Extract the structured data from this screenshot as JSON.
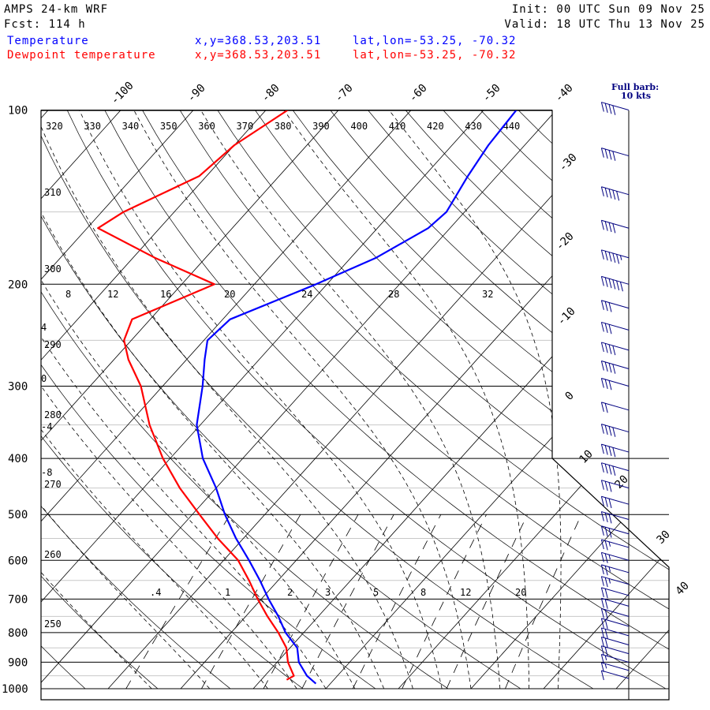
{
  "header": {
    "model": "AMPS 24-km WRF",
    "forecast": "Fcst: 114 h",
    "init": "Init: 00 UTC Sun 09 Nov 25",
    "valid": "Valid: 18 UTC Thu 13 Nov 25"
  },
  "legend": [
    {
      "name": "Temperature",
      "color": "#0000ff",
      "coords": "x,y=368.53,203.51",
      "latlon": "lat,lon=-53.25, -70.32"
    },
    {
      "name": "Dewpoint temperature",
      "color": "#ff0000",
      "coords": "x,y=368.53,203.51",
      "latlon": "lat,lon=-53.25, -70.32"
    }
  ],
  "barb_legend": {
    "line1": "Full barb:",
    "line2": "10 kts"
  },
  "chart_data": {
    "type": "line",
    "title": "",
    "xlabel": "",
    "ylabel": "",
    "y_scale": "log",
    "ylim": [
      1000,
      100
    ],
    "pressure_levels": [
      100,
      200,
      300,
      400,
      500,
      600,
      700,
      800,
      900,
      1000
    ],
    "isotherm_labels": [
      -100,
      -90,
      -80,
      -70,
      -60,
      -50,
      -40,
      -30,
      -20,
      -10,
      0,
      10,
      20,
      30,
      40
    ],
    "theta_labels_top": [
      320,
      330,
      340,
      350,
      360,
      370,
      380,
      390,
      400,
      410,
      420,
      430,
      440
    ],
    "theta_labels_left": [
      310,
      300,
      290,
      280,
      270,
      260,
      250
    ],
    "theta_e_labels": [
      8,
      12,
      16,
      20,
      24,
      28,
      32
    ],
    "theta_e_left_labels": [
      4,
      0,
      -4,
      -8
    ],
    "mixing_ratio_labels": [
      ".4",
      "1",
      "2",
      "3",
      "5",
      "8",
      "12",
      "20"
    ],
    "series": [
      {
        "name": "Temperature",
        "color": "#0000ff",
        "points": [
          {
            "p": 980,
            "t": -2.0
          },
          {
            "p": 950,
            "t": -4.2
          },
          {
            "p": 900,
            "t": -7.0
          },
          {
            "p": 850,
            "t": -9.0
          },
          {
            "p": 800,
            "t": -12.5
          },
          {
            "p": 750,
            "t": -15.5
          },
          {
            "p": 700,
            "t": -19.0
          },
          {
            "p": 650,
            "t": -22.5
          },
          {
            "p": 600,
            "t": -26.5
          },
          {
            "p": 550,
            "t": -31.0
          },
          {
            "p": 500,
            "t": -35.5
          },
          {
            "p": 450,
            "t": -40.0
          },
          {
            "p": 400,
            "t": -45.5
          },
          {
            "p": 350,
            "t": -50.5
          },
          {
            "p": 300,
            "t": -54.5
          },
          {
            "p": 270,
            "t": -57.5
          },
          {
            "p": 250,
            "t": -59.5
          },
          {
            "p": 230,
            "t": -59.0
          },
          {
            "p": 200,
            "t": -51.5
          },
          {
            "p": 180,
            "t": -46.5
          },
          {
            "p": 160,
            "t": -43.0
          },
          {
            "p": 150,
            "t": -42.5
          },
          {
            "p": 130,
            "t": -44.0
          },
          {
            "p": 115,
            "t": -45.0
          },
          {
            "p": 100,
            "t": -45.5
          }
        ]
      },
      {
        "name": "Dewpoint temperature",
        "color": "#ff0000",
        "points": [
          {
            "p": 965,
            "t": -6.5
          },
          {
            "p": 950,
            "t": -6.0
          },
          {
            "p": 900,
            "t": -8.5
          },
          {
            "p": 850,
            "t": -10.5
          },
          {
            "p": 800,
            "t": -13.5
          },
          {
            "p": 750,
            "t": -17.0
          },
          {
            "p": 700,
            "t": -20.5
          },
          {
            "p": 650,
            "t": -24.0
          },
          {
            "p": 600,
            "t": -28.0
          },
          {
            "p": 550,
            "t": -33.5
          },
          {
            "p": 500,
            "t": -39.0
          },
          {
            "p": 450,
            "t": -45.0
          },
          {
            "p": 400,
            "t": -51.0
          },
          {
            "p": 350,
            "t": -57.0
          },
          {
            "p": 300,
            "t": -63.0
          },
          {
            "p": 270,
            "t": -68.0
          },
          {
            "p": 250,
            "t": -71.0
          },
          {
            "p": 230,
            "t": -72.5
          },
          {
            "p": 200,
            "t": -65.5
          },
          {
            "p": 180,
            "t": -77.0
          },
          {
            "p": 160,
            "t": -88.5
          },
          {
            "p": 150,
            "t": -87.0
          },
          {
            "p": 130,
            "t": -81.0
          },
          {
            "p": 115,
            "t": -80.0
          },
          {
            "p": 100,
            "t": -77.0
          }
        ]
      }
    ],
    "wind_barbs_kt": [
      {
        "p": 100,
        "speed": 40
      },
      {
        "p": 120,
        "speed": 40
      },
      {
        "p": 140,
        "speed": 50
      },
      {
        "p": 160,
        "speed": 40
      },
      {
        "p": 180,
        "speed": 55
      },
      {
        "p": 200,
        "speed": 60
      },
      {
        "p": 220,
        "speed": 30
      },
      {
        "p": 240,
        "speed": 30
      },
      {
        "p": 260,
        "speed": 40
      },
      {
        "p": 280,
        "speed": 40
      },
      {
        "p": 300,
        "speed": 30
      },
      {
        "p": 330,
        "speed": 20
      },
      {
        "p": 360,
        "speed": 40
      },
      {
        "p": 390,
        "speed": 40
      },
      {
        "p": 420,
        "speed": 40
      },
      {
        "p": 450,
        "speed": 30
      },
      {
        "p": 480,
        "speed": 30
      },
      {
        "p": 510,
        "speed": 30
      },
      {
        "p": 540,
        "speed": 30
      },
      {
        "p": 570,
        "speed": 25
      },
      {
        "p": 600,
        "speed": 25
      },
      {
        "p": 630,
        "speed": 25
      },
      {
        "p": 660,
        "speed": 25
      },
      {
        "p": 690,
        "speed": 20
      },
      {
        "p": 720,
        "speed": 20
      },
      {
        "p": 750,
        "speed": 20
      },
      {
        "p": 780,
        "speed": 20
      },
      {
        "p": 810,
        "speed": 20
      },
      {
        "p": 840,
        "speed": 20
      },
      {
        "p": 870,
        "speed": 20
      },
      {
        "p": 900,
        "speed": 15
      },
      {
        "p": 930,
        "speed": 15
      },
      {
        "p": 960,
        "speed": 10
      }
    ]
  }
}
